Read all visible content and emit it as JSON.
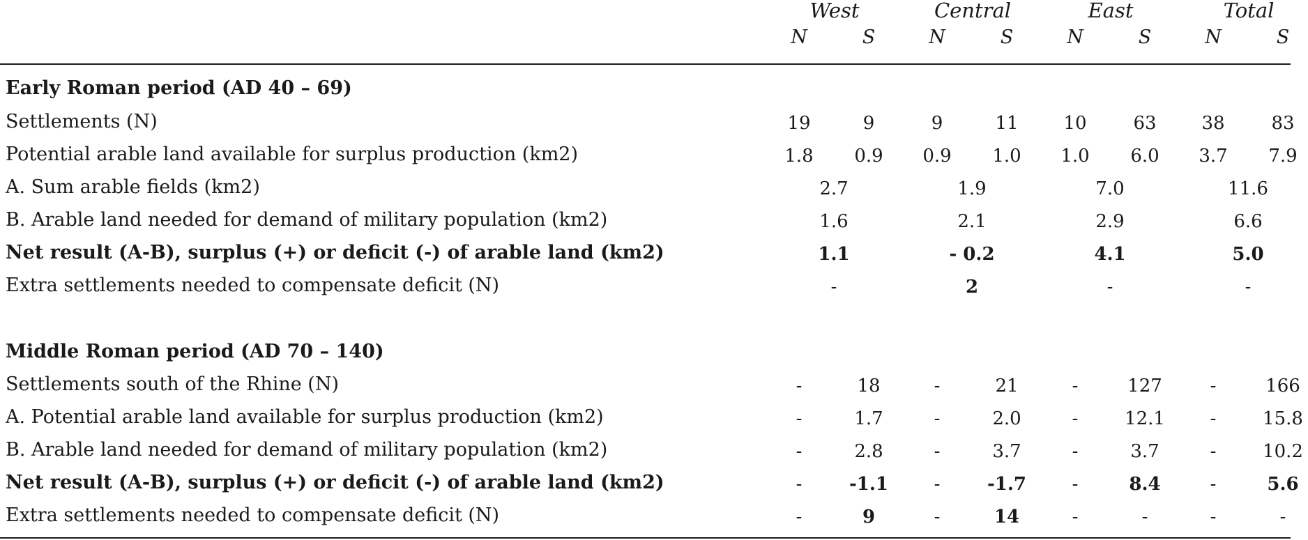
{
  "header": {
    "regions": [
      "West",
      "Central",
      "East",
      "Total"
    ],
    "sub": [
      "N",
      "S",
      "N",
      "S",
      "N",
      "S",
      "N",
      "S"
    ]
  },
  "early": {
    "title": "Early Roman period (AD 40 – 69)",
    "rows": [
      {
        "label": "Settlements (N)",
        "bold": false,
        "cells": [
          "19",
          "9",
          "9",
          "11",
          "10",
          "63",
          "38",
          "83"
        ]
      },
      {
        "label": "Potential arable land available for surplus production (km2)",
        "bold": false,
        "cells": [
          "1.8",
          "0.9",
          "0.9",
          "1.0",
          "1.0",
          "6.0",
          "3.7",
          "7.9"
        ]
      },
      {
        "label": "A. Sum arable fields (km2)",
        "bold": false,
        "merged": [
          "2.7",
          "1.9",
          "7.0",
          "11.6"
        ]
      },
      {
        "label": "B. Arable land needed for demand of military population (km2)",
        "bold": false,
        "merged": [
          "1.6",
          "2.1",
          "2.9",
          "6.6"
        ]
      },
      {
        "label": "Net result (A-B), surplus (+) or deficit (-) of arable land (km2)",
        "bold": true,
        "merged": [
          "1.1",
          "- 0.2",
          "4.1",
          "5.0"
        ]
      },
      {
        "label": "Extra settlements needed to compensate deficit (N)",
        "bold": false,
        "merged": [
          "-",
          "2",
          "-",
          "-"
        ],
        "merged_bold": [
          false,
          true,
          false,
          false
        ]
      }
    ]
  },
  "middle": {
    "title": "Middle Roman period (AD 70 – 140)",
    "rows": [
      {
        "label": "Settlements south of the Rhine (N)",
        "bold": false,
        "cells": [
          "-",
          "18",
          "-",
          "21",
          "-",
          "127",
          "-",
          "166"
        ]
      },
      {
        "label": "A. Potential arable land available for surplus production (km2)",
        "bold": false,
        "cells": [
          "-",
          "1.7",
          "-",
          "2.0",
          "-",
          "12.1",
          "-",
          "15.8"
        ]
      },
      {
        "label": "B. Arable land needed for demand of military population (km2)",
        "bold": false,
        "cells": [
          "-",
          "2.8",
          "-",
          "3.7",
          "-",
          "3.7",
          "-",
          "10.2"
        ]
      },
      {
        "label": "Net result (A-B), surplus (+) or deficit (-) of arable land (km2)",
        "bold": true,
        "cells": [
          "-",
          "-1.1",
          "-",
          "-1.7",
          "-",
          "8.4",
          "-",
          "5.6"
        ]
      },
      {
        "label": "Extra settlements needed to compensate deficit (N)",
        "bold": false,
        "cells": [
          "-",
          "9",
          "-",
          "14",
          "-",
          "-",
          "-",
          "-"
        ],
        "cells_bold": [
          false,
          true,
          false,
          true,
          false,
          false,
          false,
          false
        ]
      }
    ]
  }
}
